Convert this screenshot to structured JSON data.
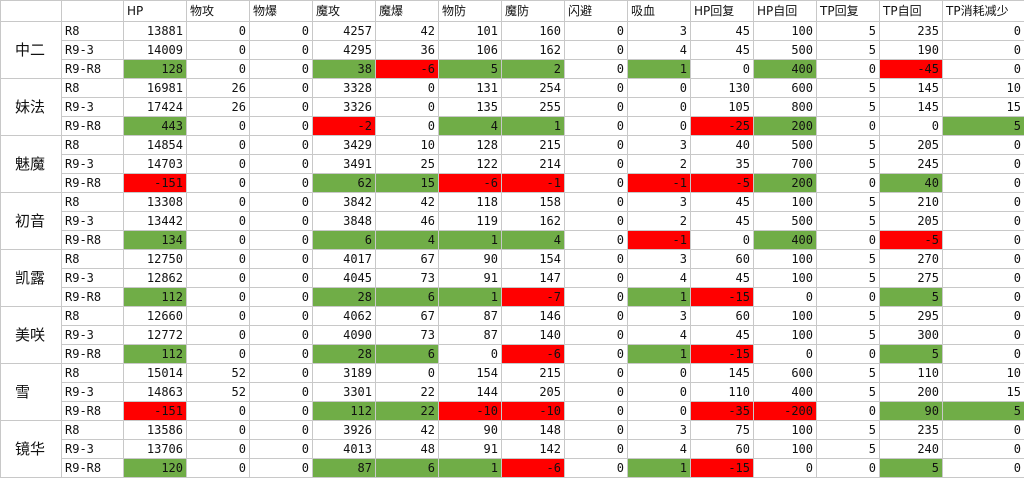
{
  "headers": [
    "",
    "",
    "HP",
    "物攻",
    "物爆",
    "魔攻",
    "魔爆",
    "物防",
    "魔防",
    "闪避",
    "吸血",
    "HP回复",
    "HP自回",
    "TP回复",
    "TP自回",
    "TP消耗减少"
  ],
  "colors": {
    "green": "#70ad47",
    "red": "#ff0000"
  },
  "groups": [
    {
      "name": "中二",
      "rows": [
        {
          "label": "R8",
          "values": [
            13881,
            0,
            0,
            4257,
            42,
            101,
            160,
            0,
            3,
            45,
            100,
            5,
            235,
            0
          ],
          "hl": []
        },
        {
          "label": "R9-3",
          "values": [
            14009,
            0,
            0,
            4295,
            36,
            106,
            162,
            0,
            4,
            45,
            500,
            5,
            190,
            0
          ],
          "hl": []
        },
        {
          "label": "R9-R8",
          "values": [
            128,
            0,
            0,
            38,
            -6,
            5,
            2,
            0,
            1,
            0,
            400,
            0,
            -45,
            0
          ],
          "hl": [
            "g",
            "",
            "",
            "g",
            "r",
            "g",
            "g",
            "",
            "g",
            "",
            "g",
            "",
            "r",
            ""
          ]
        }
      ]
    },
    {
      "name": "妹法",
      "rows": [
        {
          "label": "R8",
          "values": [
            16981,
            26,
            0,
            3328,
            0,
            131,
            254,
            0,
            0,
            130,
            600,
            5,
            145,
            10
          ],
          "hl": []
        },
        {
          "label": "R9-3",
          "values": [
            17424,
            26,
            0,
            3326,
            0,
            135,
            255,
            0,
            0,
            105,
            800,
            5,
            145,
            15
          ],
          "hl": []
        },
        {
          "label": "R9-R8",
          "values": [
            443,
            0,
            0,
            -2,
            0,
            4,
            1,
            0,
            0,
            -25,
            200,
            0,
            0,
            5
          ],
          "hl": [
            "g",
            "",
            "",
            "r",
            "",
            "g",
            "g",
            "",
            "",
            "r",
            "g",
            "",
            "",
            "g"
          ]
        }
      ]
    },
    {
      "name": "魅魔",
      "rows": [
        {
          "label": "R8",
          "values": [
            14854,
            0,
            0,
            3429,
            10,
            128,
            215,
            0,
            3,
            40,
            500,
            5,
            205,
            0
          ],
          "hl": []
        },
        {
          "label": "R9-3",
          "values": [
            14703,
            0,
            0,
            3491,
            25,
            122,
            214,
            0,
            2,
            35,
            700,
            5,
            245,
            0
          ],
          "hl": []
        },
        {
          "label": "R9-R8",
          "values": [
            -151,
            0,
            0,
            62,
            15,
            -6,
            -1,
            0,
            -1,
            -5,
            200,
            0,
            40,
            0
          ],
          "hl": [
            "r",
            "",
            "",
            "g",
            "g",
            "r",
            "r",
            "",
            "r",
            "r",
            "g",
            "",
            "g",
            ""
          ]
        }
      ]
    },
    {
      "name": "初音",
      "rows": [
        {
          "label": "R8",
          "values": [
            13308,
            0,
            0,
            3842,
            42,
            118,
            158,
            0,
            3,
            45,
            100,
            5,
            210,
            0
          ],
          "hl": []
        },
        {
          "label": "R9-3",
          "values": [
            13442,
            0,
            0,
            3848,
            46,
            119,
            162,
            0,
            2,
            45,
            500,
            5,
            205,
            0
          ],
          "hl": []
        },
        {
          "label": "R9-R8",
          "values": [
            134,
            0,
            0,
            6,
            4,
            1,
            4,
            0,
            -1,
            0,
            400,
            0,
            -5,
            0
          ],
          "hl": [
            "g",
            "",
            "",
            "g",
            "g",
            "g",
            "g",
            "",
            "r",
            "",
            "g",
            "",
            "r",
            ""
          ]
        }
      ]
    },
    {
      "name": "凯露",
      "rows": [
        {
          "label": "R8",
          "values": [
            12750,
            0,
            0,
            4017,
            67,
            90,
            154,
            0,
            3,
            60,
            100,
            5,
            270,
            0
          ],
          "hl": []
        },
        {
          "label": "R9-3",
          "values": [
            12862,
            0,
            0,
            4045,
            73,
            91,
            147,
            0,
            4,
            45,
            100,
            5,
            275,
            0
          ],
          "hl": []
        },
        {
          "label": "R9-R8",
          "values": [
            112,
            0,
            0,
            28,
            6,
            1,
            -7,
            0,
            1,
            -15,
            0,
            0,
            5,
            0
          ],
          "hl": [
            "g",
            "",
            "",
            "g",
            "g",
            "g",
            "r",
            "",
            "g",
            "r",
            "",
            "",
            "g",
            ""
          ]
        }
      ]
    },
    {
      "name": "美咲",
      "rows": [
        {
          "label": "R8",
          "values": [
            12660,
            0,
            0,
            4062,
            67,
            87,
            146,
            0,
            3,
            60,
            100,
            5,
            295,
            0
          ],
          "hl": []
        },
        {
          "label": "R9-3",
          "values": [
            12772,
            0,
            0,
            4090,
            73,
            87,
            140,
            0,
            4,
            45,
            100,
            5,
            300,
            0
          ],
          "hl": []
        },
        {
          "label": "R9-R8",
          "values": [
            112,
            0,
            0,
            28,
            6,
            0,
            -6,
            0,
            1,
            -15,
            0,
            0,
            5,
            0
          ],
          "hl": [
            "g",
            "",
            "",
            "g",
            "g",
            "",
            "r",
            "",
            "g",
            "r",
            "",
            "",
            "g",
            ""
          ]
        }
      ]
    },
    {
      "name": "雪",
      "rows": [
        {
          "label": "R8",
          "values": [
            15014,
            52,
            0,
            3189,
            0,
            154,
            215,
            0,
            0,
            145,
            600,
            5,
            110,
            10
          ],
          "hl": []
        },
        {
          "label": "R9-3",
          "values": [
            14863,
            52,
            0,
            3301,
            22,
            144,
            205,
            0,
            0,
            110,
            400,
            5,
            200,
            15
          ],
          "hl": []
        },
        {
          "label": "R9-R8",
          "values": [
            -151,
            0,
            0,
            112,
            22,
            -10,
            -10,
            0,
            0,
            -35,
            -200,
            0,
            90,
            5
          ],
          "hl": [
            "r",
            "",
            "",
            "g",
            "g",
            "r",
            "r",
            "",
            "",
            "r",
            "r",
            "",
            "g",
            "g"
          ]
        }
      ]
    },
    {
      "name": "镜华",
      "rows": [
        {
          "label": "R8",
          "values": [
            13586,
            0,
            0,
            3926,
            42,
            90,
            148,
            0,
            3,
            75,
            100,
            5,
            235,
            0
          ],
          "hl": []
        },
        {
          "label": "R9-3",
          "values": [
            13706,
            0,
            0,
            4013,
            48,
            91,
            142,
            0,
            4,
            60,
            100,
            5,
            240,
            0
          ],
          "hl": []
        },
        {
          "label": "R9-R8",
          "values": [
            120,
            0,
            0,
            87,
            6,
            1,
            -6,
            0,
            1,
            -15,
            0,
            0,
            5,
            0
          ],
          "hl": [
            "g",
            "",
            "",
            "g",
            "g",
            "g",
            "r",
            "",
            "g",
            "r",
            "",
            "",
            "g",
            ""
          ]
        }
      ]
    }
  ]
}
